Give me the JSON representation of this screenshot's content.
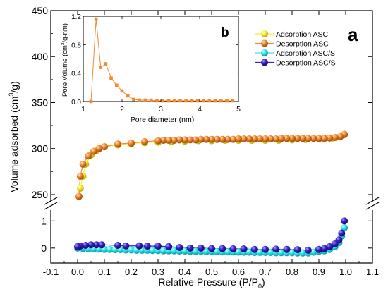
{
  "chart_data": [
    {
      "panel": "a",
      "type": "scatter",
      "panel_label": "a",
      "xlabel_parts": [
        "Relative Pressure (P/P",
        "0",
        ")"
      ],
      "ylabel_parts": [
        "Volume adsorbed (cm",
        "3",
        "/g)"
      ],
      "xlim": [
        -0.1,
        1.1
      ],
      "x_ticks": [
        "-0.1",
        "0.0",
        "0.1",
        "0.2",
        "0.3",
        "0.4",
        "0.5",
        "0.6",
        "0.7",
        "0.8",
        "0.9",
        "1.0",
        "1.1"
      ],
      "y_break": true,
      "y_upper_range": [
        240,
        450
      ],
      "y_upper_ticks": [
        "250",
        "300",
        "350",
        "400",
        "450"
      ],
      "y_lower_range": [
        -0.55,
        1.45
      ],
      "y_lower_ticks": [
        "0",
        "1"
      ],
      "grid": false,
      "legend_position": "top-right",
      "series": [
        {
          "name": "Adsorption ASC",
          "color": "#f5ee2a",
          "segment": "upper",
          "x": [
            0.005,
            0.01,
            0.02,
            0.03,
            0.05,
            0.07,
            0.1,
            0.15,
            0.2,
            0.25,
            0.3,
            0.35,
            0.4,
            0.45,
            0.5,
            0.55,
            0.6,
            0.65,
            0.7,
            0.75,
            0.8,
            0.85,
            0.9,
            0.95,
            0.98,
            0.995
          ],
          "values": [
            248,
            257,
            270,
            283,
            293,
            298,
            302,
            304,
            305.5,
            306.5,
            307,
            307.5,
            308,
            308.5,
            308.5,
            309,
            309,
            309,
            309,
            309,
            309.5,
            310,
            310.5,
            311.5,
            313,
            315
          ]
        },
        {
          "name": "Desorption ASC",
          "color": "#f08a30",
          "segment": "upper",
          "x": [
            0.995,
            0.98,
            0.96,
            0.94,
            0.92,
            0.9,
            0.88,
            0.86,
            0.84,
            0.82,
            0.8,
            0.78,
            0.76,
            0.74,
            0.72,
            0.7,
            0.68,
            0.66,
            0.64,
            0.62,
            0.6,
            0.58,
            0.56,
            0.54,
            0.52,
            0.5,
            0.48,
            0.46,
            0.44,
            0.42,
            0.4,
            0.38,
            0.36,
            0.34,
            0.32,
            0.3,
            0.25,
            0.2,
            0.15,
            0.1,
            0.08,
            0.06,
            0.04,
            0.02,
            0.01,
            0.005
          ],
          "values": [
            315.5,
            313,
            312,
            311.5,
            311,
            311,
            311,
            311,
            311,
            311,
            311,
            311,
            311,
            310.5,
            310.5,
            310.5,
            310.5,
            310.5,
            310.5,
            310.5,
            310.5,
            310,
            310,
            310,
            310,
            310,
            310,
            310,
            309.5,
            309.5,
            309.5,
            309.5,
            309,
            309,
            309,
            308.5,
            307.5,
            306,
            305,
            302,
            300,
            297,
            292,
            283,
            270,
            248
          ]
        },
        {
          "name": "Adsorption ASC/S",
          "color": "#2fe6ea",
          "segment": "lower",
          "x": [
            0.0,
            0.02,
            0.04,
            0.06,
            0.08,
            0.1,
            0.12,
            0.14,
            0.16,
            0.18,
            0.2,
            0.22,
            0.24,
            0.26,
            0.28,
            0.3,
            0.32,
            0.34,
            0.36,
            0.38,
            0.4,
            0.42,
            0.44,
            0.46,
            0.48,
            0.5,
            0.52,
            0.54,
            0.56,
            0.58,
            0.6,
            0.62,
            0.64,
            0.66,
            0.68,
            0.7,
            0.72,
            0.74,
            0.76,
            0.78,
            0.8,
            0.82,
            0.84,
            0.86,
            0.88,
            0.9,
            0.92,
            0.94,
            0.96,
            0.975,
            0.985,
            0.995
          ],
          "values": [
            0.0,
            -0.02,
            -0.03,
            -0.03,
            -0.04,
            -0.05,
            -0.05,
            -0.06,
            -0.06,
            -0.07,
            -0.07,
            -0.08,
            -0.08,
            -0.08,
            -0.09,
            -0.09,
            -0.1,
            -0.1,
            -0.1,
            -0.11,
            -0.11,
            -0.12,
            -0.12,
            -0.12,
            -0.13,
            -0.13,
            -0.13,
            -0.14,
            -0.14,
            -0.14,
            -0.15,
            -0.15,
            -0.15,
            -0.16,
            -0.16,
            -0.16,
            -0.16,
            -0.17,
            -0.17,
            -0.17,
            -0.17,
            -0.18,
            -0.18,
            -0.18,
            -0.15,
            -0.12,
            -0.1,
            -0.05,
            0.05,
            0.2,
            0.45,
            0.75
          ]
        },
        {
          "name": "Desorption ASC/S",
          "color": "#3a22c8",
          "segment": "lower",
          "x": [
            0.995,
            0.985,
            0.975,
            0.96,
            0.94,
            0.92,
            0.9,
            0.86,
            0.82,
            0.78,
            0.74,
            0.7,
            0.66,
            0.62,
            0.58,
            0.54,
            0.5,
            0.46,
            0.42,
            0.38,
            0.34,
            0.3,
            0.26,
            0.23,
            0.18,
            0.15,
            0.09,
            0.07,
            0.05,
            0.03,
            0.01,
            0.0
          ],
          "values": [
            1.0,
            0.55,
            0.3,
            0.15,
            0.05,
            -0.02,
            -0.05,
            -0.08,
            -0.06,
            -0.05,
            -0.04,
            -0.05,
            -0.05,
            -0.03,
            -0.03,
            -0.02,
            -0.02,
            0.0,
            0.0,
            0.02,
            0.05,
            0.07,
            0.07,
            0.08,
            0.08,
            0.1,
            0.12,
            0.12,
            0.12,
            0.1,
            0.07,
            0.05
          ]
        }
      ]
    },
    {
      "panel": "b",
      "type": "line",
      "panel_label": "b",
      "xlabel": "Pore diameter (nm)",
      "ylabel_parts": [
        "Pore Volume (cm",
        "3",
        "/g·nm)"
      ],
      "xlim": [
        1,
        5
      ],
      "ylim": [
        0,
        1.2
      ],
      "x_ticks": [
        "1",
        "2",
        "3",
        "4",
        "5"
      ],
      "y_ticks": [
        "0.0",
        "0.4",
        "0.8",
        "1.2"
      ],
      "grid": false,
      "color": "#f08a30",
      "x": [
        1.2,
        1.33,
        1.45,
        1.58,
        1.72,
        1.86,
        2.0,
        2.15,
        2.3,
        2.45,
        2.6,
        2.75,
        2.9,
        3.05,
        3.2,
        3.35,
        3.5,
        3.65,
        3.8,
        3.95,
        4.1,
        4.25,
        4.4,
        4.55,
        4.7,
        4.85
      ],
      "values": [
        0.0,
        1.16,
        0.48,
        0.53,
        0.33,
        0.23,
        0.15,
        0.08,
        0.03,
        0.02,
        0.02,
        0.02,
        0.01,
        0.01,
        0.01,
        0.01,
        0.01,
        0.01,
        0.01,
        0.01,
        0.01,
        0.01,
        0.01,
        0.01,
        0.01,
        0.01
      ]
    }
  ]
}
